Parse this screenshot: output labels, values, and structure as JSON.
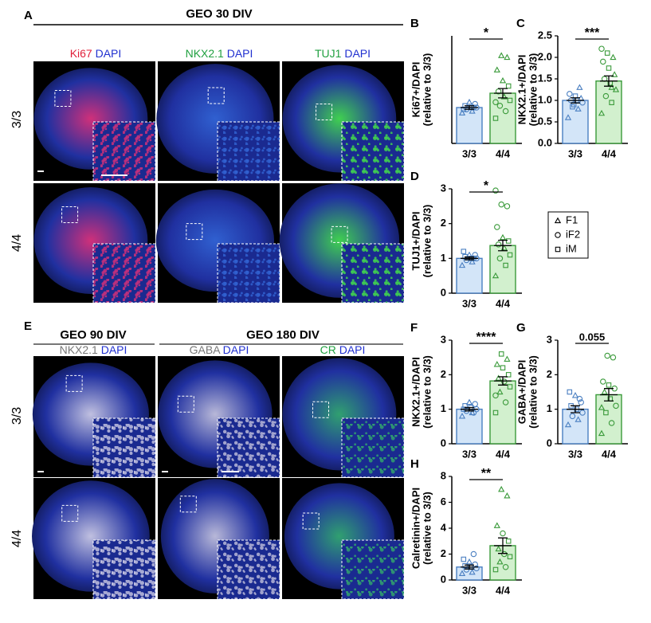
{
  "panels": {
    "A": {
      "letter": "A",
      "heading": "GEO 30 DIV",
      "rows": [
        "3/3",
        "4/4"
      ],
      "columns": [
        [
          "Ki67",
          "DAPI"
        ],
        [
          "NKX2.1",
          "DAPI"
        ],
        [
          "TUJ1",
          "DAPI"
        ]
      ]
    },
    "E": {
      "letter": "E",
      "headings": [
        "GEO 90 DIV",
        "GEO 180 DIV"
      ],
      "rows": [
        "3/3",
        "4/4"
      ],
      "columns": [
        [
          "NKX2.1",
          "DAPI"
        ],
        [
          "GABA",
          "DAPI"
        ],
        [
          "CR",
          "DAPI"
        ]
      ]
    }
  },
  "legend": [
    {
      "marker": "triangle",
      "label": "F1"
    },
    {
      "marker": "circle",
      "label": "iF2"
    },
    {
      "marker": "square",
      "label": "iM"
    }
  ],
  "chart_data": [
    {
      "type": "bar",
      "panel": "B",
      "ylabel": [
        "Ki67+/DAPI",
        "(relative to 3/3)"
      ],
      "categories": [
        "3/3",
        "4/4"
      ],
      "values": [
        1.0,
        1.4
      ],
      "errors": [
        0.05,
        0.13
      ],
      "colors": [
        "#4a7fc1",
        "#3a9a3a"
      ],
      "fills": [
        "#d3e5f8",
        "#d2f0ce"
      ],
      "ylim": [
        0,
        3
      ],
      "significance": "*",
      "points": [
        [
          0.85,
          0.9,
          0.95,
          1.0,
          1.0,
          1.05,
          1.1,
          1.15,
          0.95,
          1.0
        ],
        [
          0.7,
          0.9,
          1.05,
          1.2,
          1.3,
          1.45,
          1.6,
          1.75,
          2.05,
          2.4,
          2.45,
          1.15
        ]
      ],
      "markers": [
        [
          "triangle",
          "triangle",
          "circle",
          "circle",
          "square",
          "square",
          "circle",
          "triangle",
          "square",
          "circle"
        ],
        [
          "square",
          "circle",
          "circle",
          "square",
          "triangle",
          "circle",
          "square",
          "triangle",
          "triangle",
          "triangle",
          "triangle",
          "circle"
        ]
      ]
    },
    {
      "type": "bar",
      "panel": "C",
      "ylabel": [
        "NKX2.1+/DAPI",
        "(relative to 3/3)"
      ],
      "categories": [
        "3/3",
        "4/4"
      ],
      "values": [
        1.0,
        1.45
      ],
      "errors": [
        0.06,
        0.12
      ],
      "colors": [
        "#4a7fc1",
        "#3a9a3a"
      ],
      "fills": [
        "#d3e5f8",
        "#d2f0ce"
      ],
      "ylim": [
        0,
        2.5
      ],
      "yticks": [
        {
          "value": 0,
          "label": "0.0"
        },
        0.5,
        {
          "value": 1,
          "label": "1.0"
        },
        1.5,
        {
          "value": 2,
          "label": "2.0"
        },
        2.5
      ],
      "significance": "***",
      "points": [
        [
          0.6,
          0.8,
          0.85,
          0.95,
          1.0,
          1.0,
          1.05,
          1.1,
          1.15,
          1.3,
          0.9
        ],
        [
          0.7,
          0.95,
          1.1,
          1.25,
          1.4,
          1.5,
          1.6,
          1.75,
          1.9,
          2.0,
          2.1,
          2.2,
          1.3
        ]
      ],
      "markers": [
        [
          "triangle",
          "triangle",
          "square",
          "circle",
          "square",
          "circle",
          "triangle",
          "square",
          "circle",
          "triangle",
          "square"
        ],
        [
          "triangle",
          "square",
          "circle",
          "triangle",
          "square",
          "circle",
          "triangle",
          "square",
          "circle",
          "triangle",
          "square",
          "circle",
          "triangle"
        ]
      ]
    },
    {
      "type": "bar",
      "panel": "D",
      "ylabel": [
        "TUJ1+/DAPI",
        "(relative to 3/3)"
      ],
      "categories": [
        "3/3",
        "4/4"
      ],
      "values": [
        1.0,
        1.37
      ],
      "errors": [
        0.04,
        0.15
      ],
      "colors": [
        "#4a7fc1",
        "#3a9a3a"
      ],
      "fills": [
        "#d3e5f8",
        "#d2f0ce"
      ],
      "ylim": [
        0,
        3
      ],
      "yticks": [
        0,
        1,
        2,
        3
      ],
      "significance": "*",
      "points": [
        [
          0.8,
          0.9,
          0.95,
          1.0,
          1.0,
          1.05,
          1.1,
          1.1,
          1.2,
          1.0
        ],
        [
          0.5,
          0.8,
          1.0,
          1.1,
          1.3,
          1.4,
          1.5,
          1.6,
          1.9,
          2.5,
          2.55,
          2.95
        ]
      ],
      "markers": [
        [
          "triangle",
          "triangle",
          "circle",
          "circle",
          "square",
          "square",
          "circle",
          "triangle",
          "square",
          "circle"
        ],
        [
          "triangle",
          "square",
          "circle",
          "square",
          "triangle",
          "circle",
          "square",
          "triangle",
          "circle",
          "circle",
          "circle",
          "circle"
        ]
      ]
    },
    {
      "type": "bar",
      "panel": "F",
      "ylabel": [
        "NKX2.1+/DAPI",
        "(relative to 3/3)"
      ],
      "categories": [
        "3/3",
        "4/4"
      ],
      "values": [
        1.0,
        1.82
      ],
      "errors": [
        0.05,
        0.12
      ],
      "colors": [
        "#4a7fc1",
        "#3a9a3a"
      ],
      "fills": [
        "#d3e5f8",
        "#d2f0ce"
      ],
      "ylim": [
        0,
        3
      ],
      "yticks": [
        0,
        1,
        2,
        3
      ],
      "significance": "****",
      "points": [
        [
          0.8,
          0.9,
          0.95,
          1.0,
          1.05,
          1.1,
          1.15,
          1.2,
          1.0,
          0.9
        ],
        [
          0.9,
          1.2,
          1.5,
          1.65,
          1.8,
          1.9,
          2.0,
          2.2,
          2.3,
          2.45,
          2.6,
          1.4
        ]
      ],
      "markers": [
        [
          "triangle",
          "triangle",
          "circle",
          "circle",
          "square",
          "square",
          "circle",
          "triangle",
          "square",
          "circle"
        ],
        [
          "square",
          "circle",
          "triangle",
          "square",
          "circle",
          "triangle",
          "square",
          "square",
          "triangle",
          "triangle",
          "square",
          "circle"
        ]
      ]
    },
    {
      "type": "bar",
      "panel": "G",
      "ylabel": [
        "GABA+/DAPI",
        "(relative to 3/3)"
      ],
      "categories": [
        "3/3",
        "4/4"
      ],
      "values": [
        1.0,
        1.42
      ],
      "errors": [
        0.1,
        0.18
      ],
      "colors": [
        "#4a7fc1",
        "#3a9a3a"
      ],
      "fills": [
        "#d3e5f8",
        "#d2f0ce"
      ],
      "ylim": [
        0,
        3
      ],
      "yticks": [
        0,
        1,
        2,
        3
      ],
      "significance": "0.055",
      "points": [
        [
          0.55,
          0.7,
          0.8,
          0.9,
          1.0,
          1.1,
          1.2,
          1.4,
          1.5,
          1.3
        ],
        [
          0.3,
          0.6,
          0.9,
          1.1,
          1.3,
          1.5,
          1.6,
          1.7,
          1.8,
          2.5,
          2.55,
          1.05
        ]
      ],
      "markers": [
        [
          "triangle",
          "triangle",
          "circle",
          "circle",
          "square",
          "square",
          "circle",
          "triangle",
          "square",
          "circle"
        ],
        [
          "triangle",
          "circle",
          "square",
          "circle",
          "square",
          "triangle",
          "circle",
          "square",
          "circle",
          "circle",
          "circle",
          "triangle"
        ]
      ]
    },
    {
      "type": "bar",
      "panel": "H",
      "ylabel": [
        "Calretinin+/DAPI",
        "(relative to 3/3)"
      ],
      "categories": [
        "3/3",
        "4/4"
      ],
      "values": [
        1.0,
        2.65
      ],
      "errors": [
        0.15,
        0.6
      ],
      "colors": [
        "#4a7fc1",
        "#3a9a3a"
      ],
      "fills": [
        "#d3e5f8",
        "#d2f0ce"
      ],
      "ylim": [
        0,
        8
      ],
      "yticks": [
        0,
        2,
        4,
        6,
        8
      ],
      "significance": "**",
      "points": [
        [
          0.5,
          0.6,
          0.8,
          0.9,
          1.0,
          1.1,
          1.2,
          1.4,
          1.6,
          2.0
        ],
        [
          0.8,
          1.0,
          1.4,
          1.8,
          2.0,
          2.4,
          3.0,
          3.6,
          4.2,
          6.5,
          7.0
        ]
      ],
      "markers": [
        [
          "triangle",
          "triangle",
          "circle",
          "circle",
          "square",
          "square",
          "circle",
          "triangle",
          "square",
          "circle"
        ],
        [
          "square",
          "circle",
          "triangle",
          "square",
          "circle",
          "triangle",
          "square",
          "circle",
          "triangle",
          "triangle",
          "triangle"
        ]
      ]
    }
  ]
}
